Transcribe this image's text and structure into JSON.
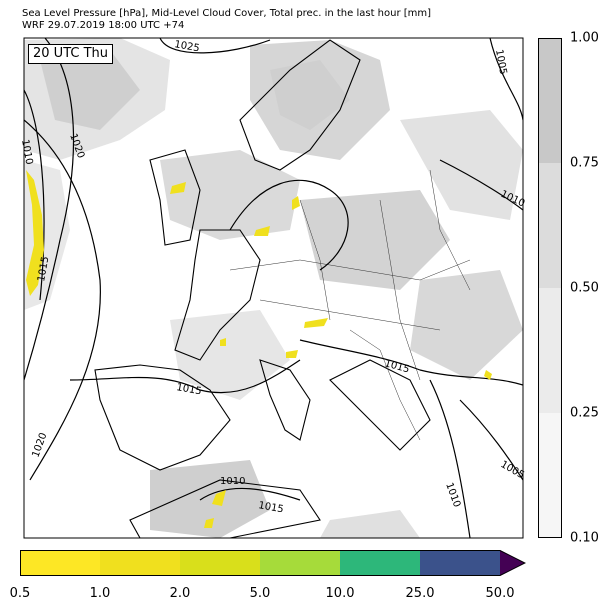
{
  "title": {
    "line1": "Sea Level Pressure [hPa], Mid-Level Cloud Cover, Total prec. in the last hour [mm]",
    "line2": "WRF 29.07.2019 18:00 UTC +74"
  },
  "map": {
    "time_label": "20 UTC Thu",
    "isobar_labels": [
      "1025",
      "1005",
      "1010",
      "1020",
      "1010",
      "1015",
      "1015",
      "1015",
      "1020",
      "1010",
      "1015",
      "1010",
      "1005"
    ]
  },
  "cloud_colorbar": {
    "ticks": [
      "1.00",
      "0.75",
      "0.50",
      "0.25",
      "0.10"
    ],
    "colors": [
      "#c8c8c8",
      "#dcdcdc",
      "#ebebeb",
      "#f6f6f6"
    ]
  },
  "precip_colorbar": {
    "ticks": [
      "0.5",
      "1.0",
      "2.0",
      "5.0",
      "10.0",
      "25.0",
      "50.0"
    ],
    "colors": [
      "#fde725",
      "#f0e01e",
      "#d9df1b",
      "#a6db3a",
      "#2db77a",
      "#3b528b",
      "#440154"
    ]
  }
}
